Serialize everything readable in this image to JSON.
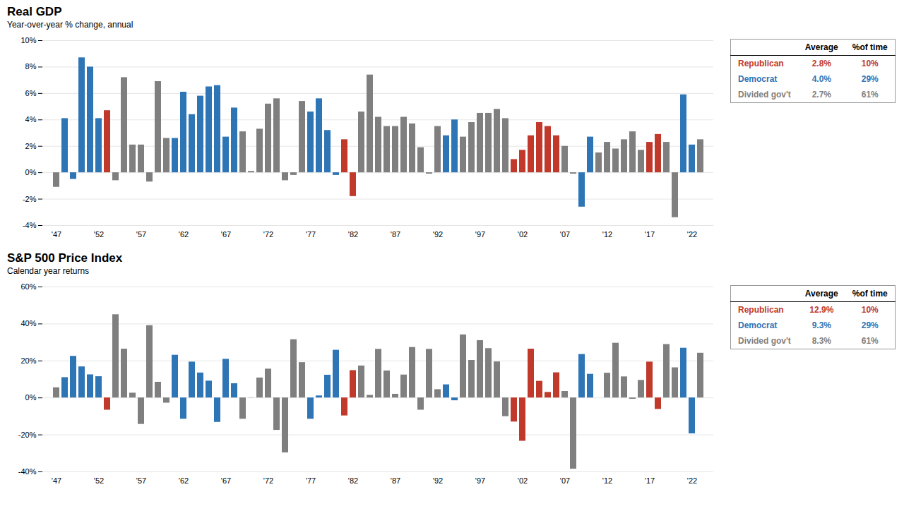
{
  "chart_data": [
    {
      "type": "bar",
      "title": "Real GDP",
      "subtitle": "Year-over-year % change, annual",
      "categories": [
        "'47",
        null,
        null,
        null,
        null,
        "'52",
        null,
        null,
        null,
        null,
        "'57",
        null,
        null,
        null,
        null,
        "'62",
        null,
        null,
        null,
        null,
        "'67",
        null,
        null,
        null,
        null,
        "'72",
        null,
        null,
        null,
        null,
        "'77",
        null,
        null,
        null,
        null,
        "'82",
        null,
        null,
        null,
        null,
        "'87",
        null,
        null,
        null,
        null,
        "'92",
        null,
        null,
        null,
        null,
        "'97",
        null,
        null,
        null,
        null,
        "'02",
        null,
        null,
        null,
        null,
        "'07",
        null,
        null,
        null,
        null,
        "'12",
        null,
        null,
        null,
        null,
        "'17",
        null,
        null,
        null,
        null,
        "'22",
        null
      ],
      "values": [
        -1.1,
        4.1,
        -0.5,
        8.7,
        8.0,
        4.1,
        4.7,
        -0.6,
        7.2,
        2.1,
        2.1,
        -0.7,
        6.9,
        2.6,
        2.6,
        6.1,
        4.4,
        5.8,
        6.5,
        6.6,
        2.7,
        4.9,
        3.1,
        0.1,
        3.3,
        5.2,
        5.6,
        -0.6,
        -0.2,
        5.4,
        4.6,
        5.6,
        3.2,
        -0.2,
        2.5,
        -1.8,
        4.6,
        7.4,
        4.2,
        3.5,
        3.5,
        4.2,
        3.7,
        1.9,
        -0.1,
        3.5,
        2.8,
        4.0,
        2.7,
        3.8,
        4.5,
        4.5,
        4.8,
        4.1,
        1.0,
        1.7,
        2.8,
        3.8,
        3.5,
        2.8,
        2.0,
        -0.1,
        -2.6,
        2.7,
        1.5,
        2.3,
        1.8,
        2.5,
        3.1,
        1.7,
        2.3,
        2.9,
        2.3,
        -3.4,
        5.9,
        2.1,
        2.5
      ],
      "colors": [
        "#7F7F7F",
        "#2E75B6",
        "#2E75B6",
        "#2E75B6",
        "#2E75B6",
        "#2E75B6",
        "#C0392B",
        "#7F7F7F",
        "#7F7F7F",
        "#7F7F7F",
        "#7F7F7F",
        "#7F7F7F",
        "#7F7F7F",
        "#7F7F7F",
        "#2E75B6",
        "#2E75B6",
        "#2E75B6",
        "#2E75B6",
        "#2E75B6",
        "#2E75B6",
        "#2E75B6",
        "#2E75B6",
        "#7F7F7F",
        "#7F7F7F",
        "#7F7F7F",
        "#7F7F7F",
        "#7F7F7F",
        "#7F7F7F",
        "#7F7F7F",
        "#7F7F7F",
        "#2E75B6",
        "#2E75B6",
        "#2E75B6",
        "#2E75B6",
        "#C0392B",
        "#C0392B",
        "#7F7F7F",
        "#7F7F7F",
        "#7F7F7F",
        "#7F7F7F",
        "#7F7F7F",
        "#7F7F7F",
        "#7F7F7F",
        "#7F7F7F",
        "#7F7F7F",
        "#7F7F7F",
        "#2E75B6",
        "#2E75B6",
        "#7F7F7F",
        "#7F7F7F",
        "#7F7F7F",
        "#7F7F7F",
        "#7F7F7F",
        "#7F7F7F",
        "#C0392B",
        "#C0392B",
        "#C0392B",
        "#C0392B",
        "#C0392B",
        "#C0392B",
        "#7F7F7F",
        "#7F7F7F",
        "#2E75B6",
        "#2E75B6",
        "#7F7F7F",
        "#7F7F7F",
        "#7F7F7F",
        "#7F7F7F",
        "#7F7F7F",
        "#7F7F7F",
        "#C0392B",
        "#C0392B",
        "#7F7F7F",
        "#7F7F7F",
        "#2E75B6",
        "#2E75B6",
        "#7F7F7F"
      ],
      "ylim": [
        -4,
        10
      ],
      "yticks": [
        {
          "value": -4,
          "label": "-4%"
        },
        {
          "value": -2,
          "label": "-2%"
        },
        {
          "value": 0,
          "label": "0%"
        },
        {
          "value": 2,
          "label": "2%"
        },
        {
          "value": 4,
          "label": "4%"
        },
        {
          "value": 6,
          "label": "6%"
        },
        {
          "value": 8,
          "label": "8%"
        },
        {
          "value": 10,
          "label": "10%"
        }
      ],
      "grid": true,
      "legend_table": {
        "columns": [
          "Average",
          "%of time"
        ],
        "rows": [
          {
            "name": "Republican",
            "color": "#C0392B",
            "cells": [
              {
                "value": 2.8,
                "label": "2.8%"
              },
              {
                "value": 10,
                "label": "10%"
              }
            ]
          },
          {
            "name": "Democrat",
            "color": "#2E75B6",
            "cells": [
              {
                "value": 4.0,
                "label": "4.0%"
              },
              {
                "value": 29,
                "label": "29%"
              }
            ]
          },
          {
            "name": "Divided gov't",
            "color": "#7F7F7F",
            "cells": [
              {
                "value": 2.7,
                "label": "2.7%"
              },
              {
                "value": 61,
                "label": "61%"
              }
            ]
          }
        ]
      }
    },
    {
      "type": "bar",
      "title": "S&P 500 Price Index",
      "subtitle": "Calendar year returns",
      "categories": [
        "'47",
        null,
        null,
        null,
        null,
        "'52",
        null,
        null,
        null,
        null,
        "'57",
        null,
        null,
        null,
        null,
        "'62",
        null,
        null,
        null,
        null,
        "'67",
        null,
        null,
        null,
        null,
        "'72",
        null,
        null,
        null,
        null,
        "'77",
        null,
        null,
        null,
        null,
        "'82",
        null,
        null,
        null,
        null,
        "'87",
        null,
        null,
        null,
        null,
        "'92",
        null,
        null,
        null,
        null,
        "'97",
        null,
        null,
        null,
        null,
        "'02",
        null,
        null,
        null,
        null,
        "'07",
        null,
        null,
        null,
        null,
        "'12",
        null,
        null,
        null,
        null,
        "'17",
        null,
        null,
        null,
        null,
        "'22",
        null
      ],
      "values": [
        5.5,
        11.0,
        22.5,
        16.8,
        12.5,
        11.5,
        -6.6,
        45.0,
        26.4,
        2.6,
        -14.3,
        39.1,
        8.5,
        -2.8,
        23.1,
        -11.5,
        19.4,
        13.5,
        9.1,
        -13.2,
        20.9,
        7.7,
        -11.5,
        0.1,
        10.8,
        15.6,
        -17.5,
        -29.7,
        31.5,
        19.1,
        -11.5,
        1.1,
        12.3,
        25.8,
        -9.7,
        14.8,
        17.3,
        1.4,
        26.3,
        14.6,
        2.0,
        12.4,
        27.3,
        -6.6,
        26.3,
        4.5,
        7.1,
        -1.5,
        34.1,
        20.3,
        31.0,
        26.7,
        19.5,
        -10.1,
        -13.0,
        -23.4,
        26.4,
        9.0,
        3.0,
        13.6,
        3.5,
        -38.5,
        23.5,
        12.8,
        0.0,
        13.4,
        29.6,
        11.4,
        -0.7,
        9.5,
        19.4,
        -6.2,
        28.9,
        16.3,
        26.9,
        -19.4,
        24.2
      ],
      "colors": [
        "#7F7F7F",
        "#2E75B6",
        "#2E75B6",
        "#2E75B6",
        "#2E75B6",
        "#2E75B6",
        "#C0392B",
        "#7F7F7F",
        "#7F7F7F",
        "#7F7F7F",
        "#7F7F7F",
        "#7F7F7F",
        "#7F7F7F",
        "#7F7F7F",
        "#2E75B6",
        "#2E75B6",
        "#2E75B6",
        "#2E75B6",
        "#2E75B6",
        "#2E75B6",
        "#2E75B6",
        "#2E75B6",
        "#7F7F7F",
        "#7F7F7F",
        "#7F7F7F",
        "#7F7F7F",
        "#7F7F7F",
        "#7F7F7F",
        "#7F7F7F",
        "#7F7F7F",
        "#2E75B6",
        "#2E75B6",
        "#2E75B6",
        "#2E75B6",
        "#C0392B",
        "#C0392B",
        "#7F7F7F",
        "#7F7F7F",
        "#7F7F7F",
        "#7F7F7F",
        "#7F7F7F",
        "#7F7F7F",
        "#7F7F7F",
        "#7F7F7F",
        "#7F7F7F",
        "#7F7F7F",
        "#2E75B6",
        "#2E75B6",
        "#7F7F7F",
        "#7F7F7F",
        "#7F7F7F",
        "#7F7F7F",
        "#7F7F7F",
        "#7F7F7F",
        "#C0392B",
        "#C0392B",
        "#C0392B",
        "#C0392B",
        "#C0392B",
        "#C0392B",
        "#7F7F7F",
        "#7F7F7F",
        "#2E75B6",
        "#2E75B6",
        "#7F7F7F",
        "#7F7F7F",
        "#7F7F7F",
        "#7F7F7F",
        "#7F7F7F",
        "#7F7F7F",
        "#C0392B",
        "#C0392B",
        "#7F7F7F",
        "#7F7F7F",
        "#2E75B6",
        "#2E75B6",
        "#7F7F7F"
      ],
      "ylim": [
        -40,
        60
      ],
      "yticks": [
        {
          "value": -40,
          "label": "-40%"
        },
        {
          "value": -20,
          "label": "-20%"
        },
        {
          "value": 0,
          "label": "0%"
        },
        {
          "value": 20,
          "label": "20%"
        },
        {
          "value": 40,
          "label": "40%"
        },
        {
          "value": 60,
          "label": "60%"
        }
      ],
      "grid": true,
      "legend_table": {
        "columns": [
          "Average",
          "%of time"
        ],
        "rows": [
          {
            "name": "Republican",
            "color": "#C0392B",
            "cells": [
              {
                "value": 12.9,
                "label": "12.9%"
              },
              {
                "value": 10,
                "label": "10%"
              }
            ]
          },
          {
            "name": "Democrat",
            "color": "#2E75B6",
            "cells": [
              {
                "value": 9.3,
                "label": "9.3%"
              },
              {
                "value": 29,
                "label": "29%"
              }
            ]
          },
          {
            "name": "Divided gov't",
            "color": "#7F7F7F",
            "cells": [
              {
                "value": 8.3,
                "label": "8.3%"
              },
              {
                "value": 61,
                "label": "61%"
              }
            ]
          }
        ]
      }
    }
  ]
}
